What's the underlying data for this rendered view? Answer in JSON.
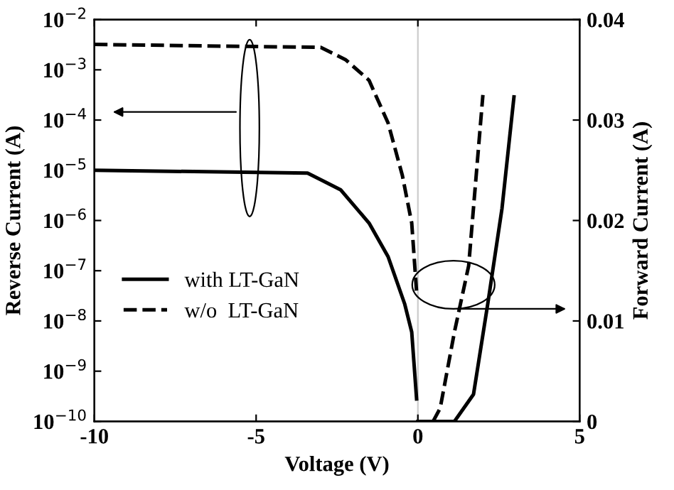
{
  "chart_data": {
    "type": "line",
    "xlabel": "Voltage (V)",
    "ylabel": "Reverse Current (A)",
    "y2label": "Forward Current (A)",
    "log": "y",
    "xlim": [
      -10,
      5
    ],
    "xticks": [
      -10,
      -5,
      0,
      5
    ],
    "ylim": [
      1e-10,
      0.01
    ],
    "yticks": [
      {
        "value": 1e-10,
        "label": "10$^{−10}$"
      },
      {
        "value": 1e-09,
        "label": "10$^{−9}$"
      },
      {
        "value": 1e-08,
        "label": "10$^{−8}$"
      },
      {
        "value": 1e-07,
        "label": "10$^{−7}$"
      },
      {
        "value": 1e-06,
        "label": "10$^{−6}$"
      },
      {
        "value": 1e-05,
        "label": "10$^{−5}$"
      },
      {
        "value": 0.0001,
        "label": "10$^{−4}$"
      },
      {
        "value": 0.001,
        "label": "10$^{−3}$"
      },
      {
        "value": 0.01,
        "label": "10$^{−2}$"
      }
    ],
    "y2lim": [
      0,
      0.04
    ],
    "y2ticks": [
      {
        "value": 0,
        "label": "0"
      },
      {
        "value": 0.01,
        "label": "0.01"
      },
      {
        "value": 0.02,
        "label": "0.02"
      },
      {
        "value": 0.03,
        "label": "0.03"
      },
      {
        "value": 0.04,
        "label": "0.04"
      }
    ],
    "legend": "center left",
    "grid": false,
    "ref_lines": [
      {
        "axis": "x",
        "value": 0,
        "color": "#cccccc"
      }
    ],
    "series": [
      {
        "name": "with LT-GaN",
        "color": "#000000",
        "line_style": "solid",
        "x": [
          -10,
          -3.41,
          -2.39,
          -1.51,
          -0.92,
          -0.41,
          -0.19,
          -0.04
        ],
        "values": [
          1e-05,
          8.8e-06,
          4.1e-06,
          8.9e-07,
          1.9e-07,
          2.2e-08,
          6e-09,
          2.8e-10
        ]
      },
      {
        "name": "w/o  LT-GaN",
        "color": "#000000",
        "line_style": "dashed",
        "x": [
          -10,
          -3.0,
          -2.24,
          -1.51,
          -0.92,
          -0.48,
          -0.19,
          -0.04
        ],
        "values": [
          0.0032,
          0.0028,
          0.0016,
          0.00062,
          8.7e-05,
          7.9e-06,
          8.9e-07,
          3.8e-08
        ]
      },
      {
        "color": "#000000",
        "line_style": "solid",
        "axis": "y2",
        "x": [
          0,
          1.13,
          1.72,
          2.16,
          2.6,
          2.97
        ],
        "values": [
          0,
          0,
          0.0027,
          0.0117,
          0.0212,
          0.0323
        ]
      },
      {
        "color": "#000000",
        "line_style": "dashed",
        "axis": "y2",
        "x": [
          0.47,
          0.69,
          1.13,
          1.57,
          2.01
        ],
        "values": [
          0,
          0.00132,
          0.0089,
          0.0155,
          0.0325
        ]
      }
    ]
  }
}
